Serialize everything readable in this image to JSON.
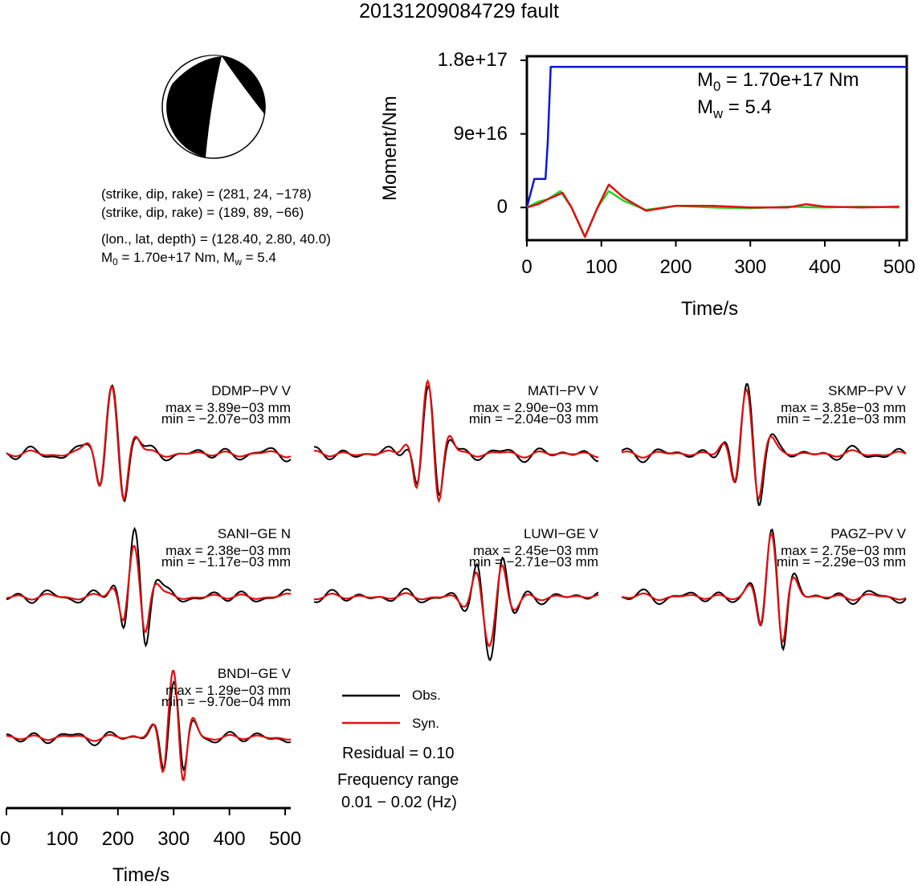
{
  "title": "20131209084729 fault",
  "mechanism": {
    "plane1": "(strike, dip, rake) = (281, 24, −178)",
    "plane2": "(strike, dip, rake) = (189, 89, −66)",
    "location": "(lon., lat, depth) = (128.40, 2.80, 40.0)",
    "moment_line": {
      "m0": "M0 = 1.70e+17 Nm",
      "sep": ", ",
      "mw": "Mw = 5.4"
    }
  },
  "moment_chart": {
    "type": "line",
    "xlabel": "Time/s",
    "ylabel": "Moment/Nm",
    "xlim": [
      0,
      510
    ],
    "ylim": [
      -4e+16,
      1.85e+17
    ],
    "xticks": [
      "0",
      "100",
      "200",
      "300",
      "400",
      "500"
    ],
    "yticks": [
      "0",
      "9e+16",
      "1.8e+17"
    ],
    "annotation_m0": "M0 = 1.70e+17 Nm",
    "annotation_mw": "Mw = 5.4",
    "colors": {
      "moment": "#0a18d8",
      "green": "#22d322",
      "red": "#e01010"
    }
  },
  "waveform_axis": {
    "xlabel": "Time/s",
    "xlim": [
      0,
      510
    ],
    "xticks": [
      "0",
      "100",
      "200",
      "300",
      "400",
      "500"
    ]
  },
  "legend": {
    "obs": "Obs.",
    "syn": "Syn.",
    "obs_color": "#000000",
    "syn_color": "#e01010"
  },
  "residual": "Residual = 0.10",
  "freq_label": "Frequency range",
  "freq_value": "0.01 − 0.02 (Hz)",
  "stations": [
    {
      "name": "DDMP−PV V",
      "max": "max = 3.89e−03 mm",
      "min": "min = −2.07e−03 mm"
    },
    {
      "name": "MATI−PV V",
      "max": "max = 2.90e−03 mm",
      "min": "min = −2.04e−03 mm"
    },
    {
      "name": "SKMP−PV V",
      "max": "max = 3.85e−03 mm",
      "min": "min = −2.21e−03 mm"
    },
    {
      "name": "SANI−GE N",
      "max": "max = 2.38e−03 mm",
      "min": "min = −1.17e−03 mm"
    },
    {
      "name": "LUWI−GE V",
      "max": "max = 2.45e−03 mm",
      "min": "min = −2.71e−03 mm"
    },
    {
      "name": "PAGZ−PV V",
      "max": "max = 2.75e−03 mm",
      "min": "min = −2.29e−03 mm"
    },
    {
      "name": "BNDI−GE V",
      "max": "max = 1.29e−03 mm",
      "min": "min = −9.70e−04 mm"
    }
  ],
  "chart_data": [
    {
      "type": "line",
      "title": "",
      "xlabel": "Time/s",
      "ylabel": "Moment/Nm",
      "xlim": [
        0,
        510
      ],
      "ylim": [
        -4e+16,
        1.85e+17
      ],
      "series": [
        {
          "color": "#0a18d8",
          "x": [
            0,
            10,
            12,
            25,
            28,
            32,
            510
          ],
          "y": [
            0,
            3.5e+16,
            3.5e+16,
            3.5e+16,
            8e+16,
            1.72e+17,
            1.72e+17
          ]
        },
        {
          "color": "#22d322",
          "x": [
            0,
            15,
            28,
            45,
            60,
            78,
            95,
            110,
            130,
            160,
            200,
            250,
            300,
            350,
            400,
            450,
            500
          ],
          "y": [
            0,
            7000000000000000.0,
            1e+16,
            2e+16,
            0,
            -3.6e+16,
            0,
            2e+16,
            8000000000000000.0,
            -3000000000000000.0,
            2000000000000000.0,
            0,
            -1000000000000000.0,
            1000000000000000.0,
            0,
            1000000000000000.0,
            0
          ]
        },
        {
          "color": "#e01010",
          "x": [
            0,
            15,
            28,
            48,
            60,
            78,
            95,
            110,
            130,
            160,
            200,
            250,
            300,
            350,
            375,
            400,
            450,
            500
          ],
          "y": [
            0,
            4000000000000000.0,
            1e+16,
            1.8e+16,
            0,
            -3.6e+16,
            0,
            2.8e+16,
            1.2e+16,
            -4000000000000000.0,
            2000000000000000.0,
            2000000000000000.0,
            0,
            0,
            4000000000000000.0,
            1000000000000000.0,
            0,
            1000000000000000.0
          ]
        }
      ]
    }
  ]
}
